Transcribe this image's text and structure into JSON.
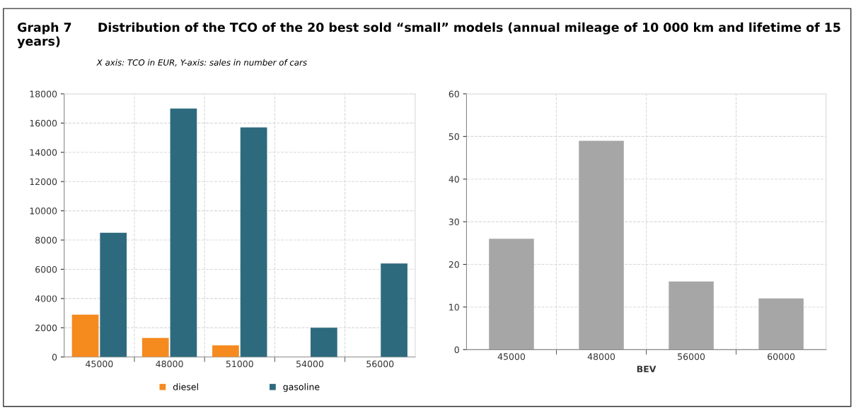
{
  "chart_data": [
    {
      "type": "bar",
      "title": "Graph 7      Distribution of the TCO of the 20 best sold “small” models (annual mileage of 10 000 km and lifetime of 15 years)",
      "subtitle": "X axis: TCO in EUR, Y-axis: sales in number of cars",
      "categories": [
        "45000",
        "48000",
        "51000",
        "54000",
        "56000"
      ],
      "series": [
        {
          "name": "diesel",
          "color": "#f58a1f",
          "values": [
            2900,
            1300,
            800,
            null,
            null
          ]
        },
        {
          "name": "gasoline",
          "color": "#2e6a7e",
          "values": [
            8500,
            17000,
            15700,
            2000,
            6400
          ]
        }
      ],
      "ylim": [
        0,
        18000
      ],
      "yticks": [
        0,
        2000,
        4000,
        6000,
        8000,
        10000,
        12000,
        14000,
        16000,
        18000
      ],
      "grid": true,
      "legend": "bottom"
    },
    {
      "type": "bar",
      "xlabel": "BEV",
      "categories": [
        "45000",
        "48000",
        "56000",
        "60000"
      ],
      "series": [
        {
          "color": "#a6a6a6",
          "values": [
            26,
            49,
            16,
            12
          ]
        }
      ],
      "ylim": [
        0,
        60
      ],
      "yticks": [
        0,
        10,
        20,
        30,
        40,
        50,
        60
      ],
      "grid": true
    }
  ]
}
